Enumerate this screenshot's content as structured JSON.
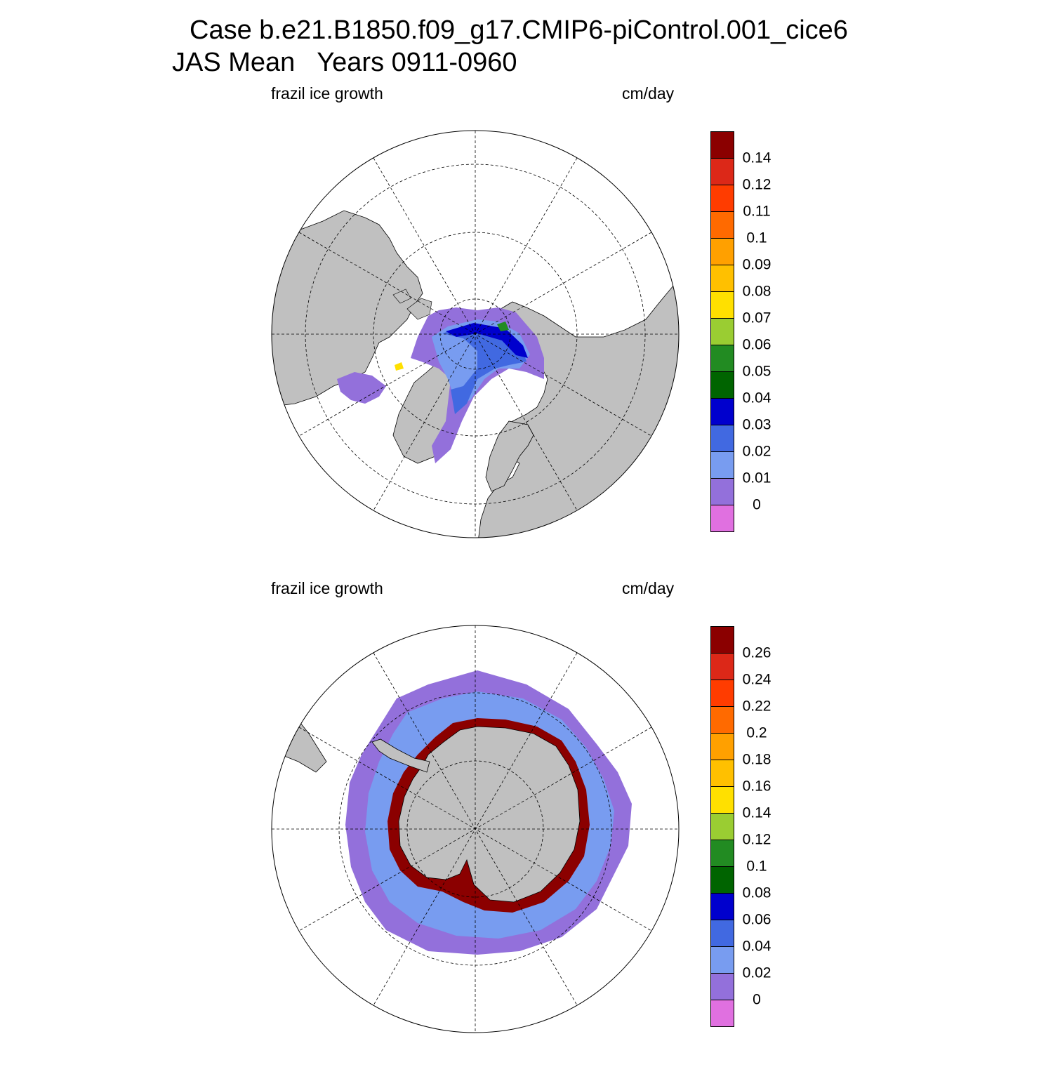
{
  "header": {
    "line1": "Case b.e21.B1850.f09_g17.CMIP6-piControl.001_cice6",
    "line2": "JAS Mean   Years 0911-0960"
  },
  "panels": [
    {
      "id": "nh",
      "variable_label": "frazil ice growth",
      "unit_label": "cm/day",
      "colorbar": {
        "colors": [
          "#e070e0",
          "#9370db",
          "#789cf0",
          "#4169e1",
          "#0000cd",
          "#006400",
          "#228b22",
          "#9acd32",
          "#ffe000",
          "#ffc000",
          "#ffa000",
          "#ff6a00",
          "#ff3c00",
          "#dc2818",
          "#8b0000"
        ],
        "labels": [
          "0",
          "0.01",
          "0.02",
          "0.03",
          "0.04",
          "0.05",
          "0.06",
          "0.07",
          "0.08",
          "0.09",
          "0.1",
          "0.11",
          "0.12",
          "0.14"
        ]
      }
    },
    {
      "id": "sh",
      "variable_label": "frazil ice growth",
      "unit_label": "cm/day",
      "colorbar": {
        "colors": [
          "#e070e0",
          "#9370db",
          "#789cf0",
          "#4169e1",
          "#0000cd",
          "#006400",
          "#228b22",
          "#9acd32",
          "#ffe000",
          "#ffc000",
          "#ffa000",
          "#ff6a00",
          "#ff3c00",
          "#dc2818",
          "#8b0000"
        ],
        "labels": [
          "0",
          "0.02",
          "0.04",
          "0.06",
          "0.08",
          "0.1",
          "0.12",
          "0.14",
          "0.16",
          "0.18",
          "0.2",
          "0.22",
          "0.24",
          "0.26"
        ]
      }
    }
  ],
  "colors": {
    "land": "#c0c0c0",
    "ocean_no_ice": "#ffffff"
  }
}
